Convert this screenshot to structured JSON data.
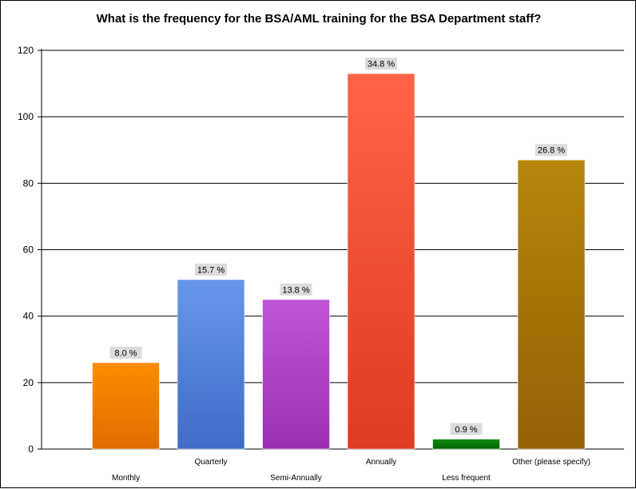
{
  "chart_data": {
    "type": "bar",
    "title": "What is the frequency for the BSA/AML training for the BSA Department staff?",
    "xlabel": "",
    "ylabel": "",
    "ylim": [
      0,
      120
    ],
    "yticks": [
      "0",
      "20",
      "40",
      "60",
      "80",
      "100",
      "120"
    ],
    "grid": true,
    "legend": "none",
    "categories": [
      "Monthly",
      "Quarterly",
      "Semi-Annually",
      "Annually",
      "Less frequent",
      "Other (please specify)"
    ],
    "values": [
      26,
      51,
      45,
      113,
      3,
      87
    ],
    "data_labels": [
      "8.0 %",
      "15.7 %",
      "13.8 %",
      "34.8 %",
      "0.9 %",
      "26.8 %"
    ],
    "colors": [
      [
        "#ff8c00",
        "#e06c00"
      ],
      [
        "#6797ea",
        "#3e6cc8"
      ],
      [
        "#bf56d8",
        "#9a30b0"
      ],
      [
        "#ff6347",
        "#de3c22"
      ],
      [
        "#128a12",
        "#006400"
      ],
      [
        "#b8860b",
        "#956005"
      ]
    ]
  }
}
